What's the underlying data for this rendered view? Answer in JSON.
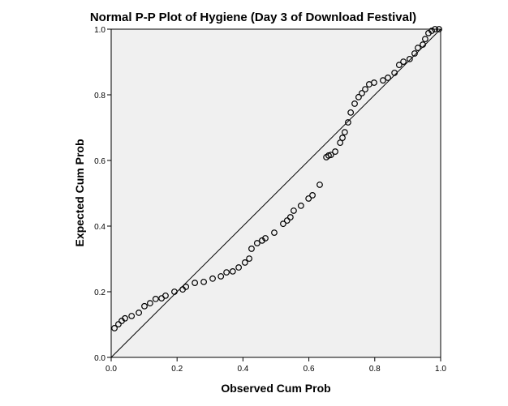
{
  "chart_data": {
    "type": "scatter",
    "title": "Normal P-P Plot of Hygiene (Day 3 of Download Festival)",
    "xlabel": "Observed Cum Prob",
    "ylabel": "Expected Cum Prob",
    "xlim": [
      0,
      1
    ],
    "ylim": [
      0,
      1
    ],
    "xticks": [
      "0.0",
      "0.2",
      "0.4",
      "0.6",
      "0.8",
      "1.0"
    ],
    "yticks": [
      "0.0",
      "0.2",
      "0.4",
      "0.6",
      "0.8",
      "1.0"
    ],
    "reference_line": [
      [
        0,
        0
      ],
      [
        1,
        1
      ]
    ],
    "grid": false,
    "colors": {
      "background": "#f0f0f0",
      "marker": "#000000"
    },
    "points": [
      [
        0.01,
        0.089
      ],
      [
        0.022,
        0.101
      ],
      [
        0.032,
        0.111
      ],
      [
        0.042,
        0.119
      ],
      [
        0.062,
        0.126
      ],
      [
        0.084,
        0.136
      ],
      [
        0.101,
        0.156
      ],
      [
        0.118,
        0.165
      ],
      [
        0.135,
        0.178
      ],
      [
        0.153,
        0.18
      ],
      [
        0.165,
        0.188
      ],
      [
        0.192,
        0.2
      ],
      [
        0.217,
        0.207
      ],
      [
        0.227,
        0.215
      ],
      [
        0.254,
        0.227
      ],
      [
        0.281,
        0.23
      ],
      [
        0.308,
        0.24
      ],
      [
        0.333,
        0.247
      ],
      [
        0.35,
        0.259
      ],
      [
        0.369,
        0.262
      ],
      [
        0.387,
        0.274
      ],
      [
        0.406,
        0.289
      ],
      [
        0.419,
        0.301
      ],
      [
        0.426,
        0.331
      ],
      [
        0.443,
        0.348
      ],
      [
        0.458,
        0.356
      ],
      [
        0.468,
        0.363
      ],
      [
        0.495,
        0.38
      ],
      [
        0.522,
        0.407
      ],
      [
        0.534,
        0.417
      ],
      [
        0.544,
        0.427
      ],
      [
        0.554,
        0.447
      ],
      [
        0.576,
        0.462
      ],
      [
        0.599,
        0.484
      ],
      [
        0.611,
        0.494
      ],
      [
        0.633,
        0.526
      ],
      [
        0.653,
        0.61
      ],
      [
        0.66,
        0.615
      ],
      [
        0.667,
        0.617
      ],
      [
        0.68,
        0.627
      ],
      [
        0.695,
        0.654
      ],
      [
        0.702,
        0.669
      ],
      [
        0.709,
        0.686
      ],
      [
        0.719,
        0.716
      ],
      [
        0.727,
        0.746
      ],
      [
        0.739,
        0.773
      ],
      [
        0.751,
        0.793
      ],
      [
        0.761,
        0.805
      ],
      [
        0.771,
        0.817
      ],
      [
        0.783,
        0.832
      ],
      [
        0.798,
        0.837
      ],
      [
        0.825,
        0.844
      ],
      [
        0.84,
        0.852
      ],
      [
        0.86,
        0.867
      ],
      [
        0.874,
        0.891
      ],
      [
        0.887,
        0.901
      ],
      [
        0.906,
        0.909
      ],
      [
        0.921,
        0.926
      ],
      [
        0.931,
        0.943
      ],
      [
        0.946,
        0.953
      ],
      [
        0.953,
        0.97
      ],
      [
        0.963,
        0.988
      ],
      [
        0.973,
        0.995
      ],
      [
        0.983,
        1.0
      ],
      [
        0.995,
        1.0
      ]
    ]
  }
}
